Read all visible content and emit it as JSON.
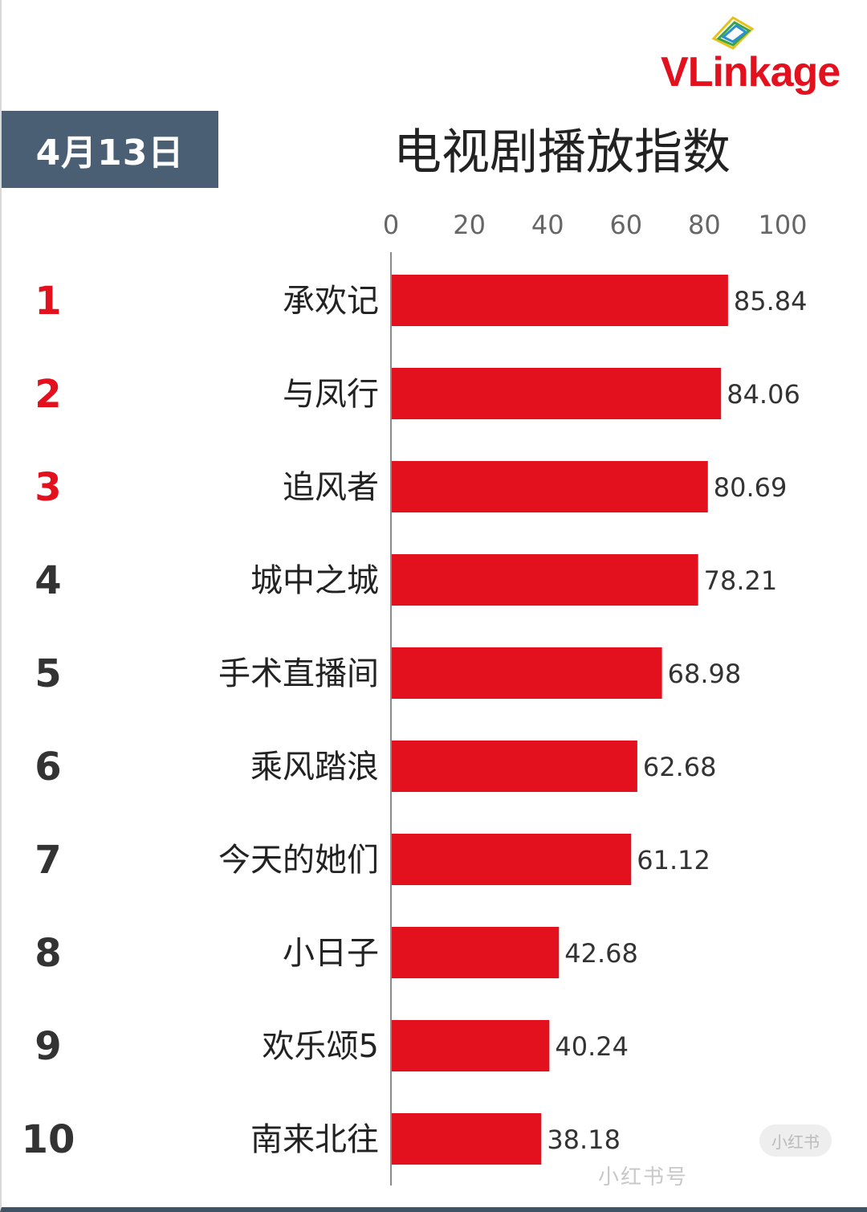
{
  "header": {
    "date_label": "4月13日",
    "brand": {
      "v": "V",
      "rest": "Linkage"
    }
  },
  "chart_data": {
    "type": "bar",
    "orientation": "horizontal",
    "title": "电视剧播放指数",
    "ranks": [
      "1",
      "2",
      "3",
      "4",
      "5",
      "6",
      "7",
      "8",
      "9",
      "10"
    ],
    "categories": [
      "承欢记",
      "与凤行",
      "追风者",
      "城中之城",
      "手术直播间",
      "乘风踏浪",
      "今天的她们",
      "小日子",
      "欢乐颂5",
      "南来北往"
    ],
    "values": [
      85.84,
      84.06,
      80.69,
      78.21,
      68.98,
      62.68,
      61.12,
      42.68,
      40.24,
      38.18
    ],
    "value_labels": [
      "85.84",
      "84.06",
      "80.69",
      "78.21",
      "68.98",
      "62.68",
      "61.12",
      "42.68",
      "40.24",
      "38.18"
    ],
    "xlim": [
      0,
      100
    ],
    "xticks": [
      "0",
      "20",
      "40",
      "60",
      "80",
      "100"
    ],
    "xlabel": "",
    "ylabel": "",
    "grid": false,
    "axis_position": "top",
    "colors": {
      "bar": "#e3101d",
      "rank_top3": "#e3101d",
      "rank_other": "#333333"
    }
  },
  "watermark": {
    "text": "小红书号",
    "logo": "小红书"
  }
}
